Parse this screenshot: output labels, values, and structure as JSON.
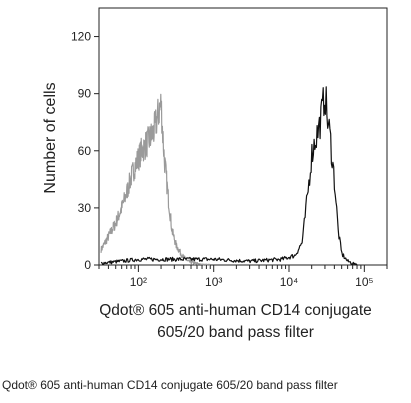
{
  "chart_data": {
    "type": "line",
    "title": "",
    "ylabel": "Number of cells",
    "xlabel_line1": "Qdot® 605 anti-human CD14 conjugate",
    "xlabel_line2": "605/20 band pass filter",
    "xscale": "log",
    "xlim": [
      30,
      200000
    ],
    "ylim": [
      0,
      135
    ],
    "yticks": [
      0,
      30,
      60,
      90,
      120
    ],
    "ytick_labels": [
      "0",
      "30",
      "60",
      "90",
      "120"
    ],
    "xticks": [
      100,
      1000,
      10000,
      100000
    ],
    "xtick_labels": [
      "10²",
      "10³",
      "10⁴",
      "10⁵"
    ],
    "grid": false,
    "series": [
      {
        "color": "#9a9a9a",
        "x": [
          32,
          40,
          50,
          60,
          70,
          80,
          90,
          100,
          110,
          120,
          140,
          160,
          180,
          200,
          210,
          220,
          250,
          280,
          320,
          380,
          450,
          550,
          700,
          900
        ],
        "y": [
          8,
          15,
          22,
          30,
          38,
          46,
          52,
          56,
          60,
          62,
          66,
          70,
          78,
          85,
          70,
          57,
          35,
          18,
          10,
          5,
          2,
          1,
          0,
          0
        ]
      },
      {
        "color": "#111111",
        "x": [
          32,
          60,
          100,
          200,
          500,
          1000,
          3000,
          8000,
          12000,
          15000,
          18000,
          20000,
          22000,
          25000,
          28000,
          30000,
          32000,
          35000,
          40000,
          45000,
          50000,
          60000,
          80000
        ],
        "y": [
          1,
          2,
          3,
          3,
          3,
          3,
          2,
          3,
          5,
          12,
          40,
          58,
          65,
          72,
          82,
          92,
          78,
          68,
          45,
          18,
          6,
          2,
          0
        ]
      }
    ]
  },
  "caption": "Qdot® 605 anti-human CD14 conjugate 605/20 band pass filter"
}
